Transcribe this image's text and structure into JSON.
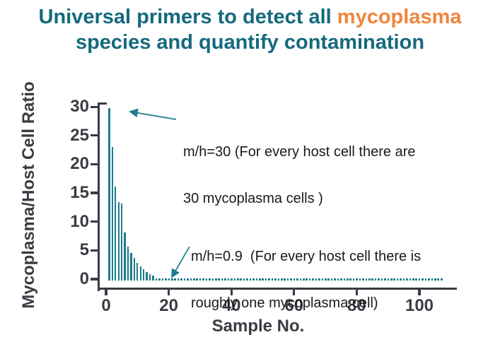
{
  "title": {
    "line1_prefix": "Universal primers to detect all ",
    "line1_highlight": "mycoplasma",
    "line2": "species and quantify contamination"
  },
  "colors": {
    "title_teal": "#15697d",
    "orange": "#f0863c",
    "bar_teal": "#1e7b8d",
    "axis_dark": "#3b3b44",
    "annotation_text": "#1a1a1a",
    "background": "#ffffff"
  },
  "chart_data": {
    "type": "bar",
    "title": "",
    "xlabel": "Sample No.",
    "ylabel": "Mycoplasma/Host Cell Ratio",
    "x_ticks": [
      "0",
      "20",
      "40",
      "60",
      "80",
      "100"
    ],
    "y_ticks": [
      "0",
      "5",
      "10",
      "15",
      "20",
      "25",
      "30"
    ],
    "xlim": [
      0,
      110
    ],
    "ylim": [
      0,
      30
    ],
    "grid": false,
    "legend": false,
    "description": "Mycoplasma/host cell ratio per sample, sorted descending; samples 1-15 show exponential decay from 30 to ~0.9, samples 16-107 are trace values rendered as a dotted row near zero",
    "values": [
      30,
      23.2,
      16.4,
      13.7,
      13.4,
      8.4,
      5.9,
      4.8,
      3.9,
      3.1,
      2.5,
      2.0,
      1.5,
      1.1,
      0.9,
      0.3,
      0.3,
      0.3,
      0.3,
      0.3,
      0.3,
      0.3,
      0.3,
      0.3,
      0.3,
      0.3,
      0.3,
      0.3,
      0.3,
      0.3,
      0.3,
      0.3,
      0.3,
      0.3,
      0.3,
      0.3,
      0.3,
      0.3,
      0.3,
      0.3,
      0.3,
      0.3,
      0.3,
      0.3,
      0.3,
      0.3,
      0.3,
      0.3,
      0.3,
      0.3,
      0.3,
      0.3,
      0.3,
      0.3,
      0.3,
      0.3,
      0.3,
      0.3,
      0.3,
      0.3,
      0.3,
      0.3,
      0.3,
      0.3,
      0.3,
      0.3,
      0.3,
      0.3,
      0.3,
      0.3,
      0.3,
      0.3,
      0.3,
      0.3,
      0.3,
      0.3,
      0.3,
      0.3,
      0.3,
      0.3,
      0.3,
      0.3,
      0.3,
      0.3,
      0.3,
      0.3,
      0.3,
      0.3,
      0.3,
      0.3,
      0.3,
      0.3,
      0.3,
      0.3,
      0.3,
      0.3,
      0.3,
      0.3,
      0.3,
      0.3,
      0.3,
      0.3,
      0.3,
      0.3,
      0.3,
      0.3,
      0.3
    ],
    "annotations": [
      {
        "line1": "m/h=30 (For every host cell there are",
        "line2": "30 mycoplasma cells )",
        "points_to_sample": 1
      },
      {
        "line1": "m/h=0.9  (For every host cell there is",
        "line2": "roughly one mycoplasma cell)",
        "points_to_sample": 20
      }
    ]
  }
}
